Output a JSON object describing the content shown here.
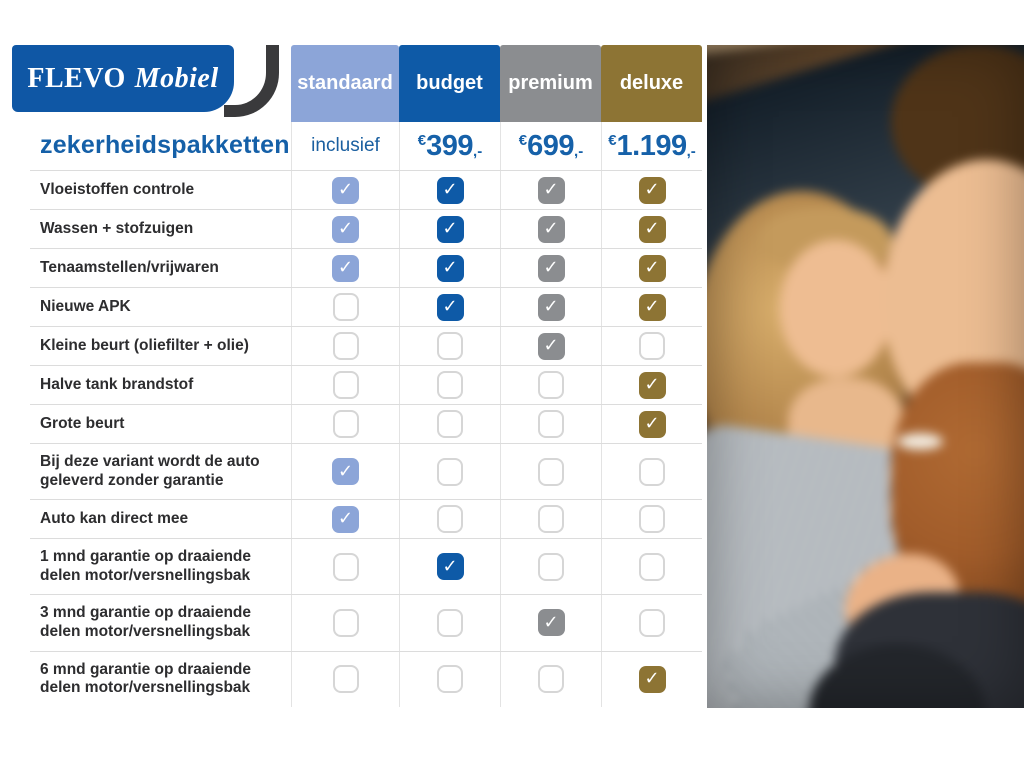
{
  "brand": {
    "logo_primary": "FLEVO",
    "logo_secondary": "Mobiel"
  },
  "title": "zekerheidspakketten",
  "icons": {
    "check": "✓"
  },
  "colors": {
    "brand_blue": "#0f57a5",
    "title_blue": "#1560a8",
    "price_blue": "#1661a9",
    "swoosh_dark": "#3a3a3c",
    "standaard": "#8ca5d8",
    "budget": "#0e5aa7",
    "premium": "#8b8d90",
    "deluxe": "#8d7434"
  },
  "table": {
    "columns": [
      {
        "label": "standaard",
        "color": "#8ca5d8",
        "price_text": "inclusief"
      },
      {
        "label": "budget",
        "color": "#0e5aa7",
        "currency": "€",
        "amount": "399",
        "suffix": ",-"
      },
      {
        "label": "premium",
        "color": "#8b8d90",
        "currency": "€",
        "amount": "699",
        "suffix": ",-"
      },
      {
        "label": "deluxe",
        "color": "#8d7434",
        "currency": "€",
        "amount": "1.199",
        "suffix": ",-"
      }
    ],
    "rows": [
      {
        "label": "Vloeistoffen controle",
        "checks": [
          true,
          true,
          true,
          true
        ]
      },
      {
        "label": "Wassen + stofzuigen",
        "checks": [
          true,
          true,
          true,
          true
        ]
      },
      {
        "label": "Tenaamstellen/vrijwaren",
        "checks": [
          true,
          true,
          true,
          true
        ]
      },
      {
        "label": "Nieuwe APK",
        "checks": [
          false,
          true,
          true,
          true
        ]
      },
      {
        "label": "Kleine beurt (oliefilter + olie)",
        "checks": [
          false,
          false,
          true,
          false
        ]
      },
      {
        "label": "Halve tank brandstof",
        "checks": [
          false,
          false,
          false,
          true
        ]
      },
      {
        "label": "Grote beurt",
        "checks": [
          false,
          false,
          false,
          true
        ]
      },
      {
        "label": "Bij deze variant wordt de auto geleverd zonder garantie",
        "checks": [
          true,
          false,
          false,
          false
        ]
      },
      {
        "label": "Auto kan direct mee",
        "checks": [
          true,
          false,
          false,
          false
        ]
      },
      {
        "label": "1 mnd garantie op draaiende delen motor/versnellingsbak",
        "checks": [
          false,
          true,
          false,
          false
        ]
      },
      {
        "label": "3 mnd garantie op draaiende delen motor/versnellingsbak",
        "checks": [
          false,
          false,
          true,
          false
        ]
      },
      {
        "label": "6 mnd garantie op draaiende delen motor/versnellingsbak",
        "checks": [
          false,
          false,
          false,
          true
        ]
      }
    ]
  },
  "photo": {
    "name": "couple-in-car-photo"
  }
}
